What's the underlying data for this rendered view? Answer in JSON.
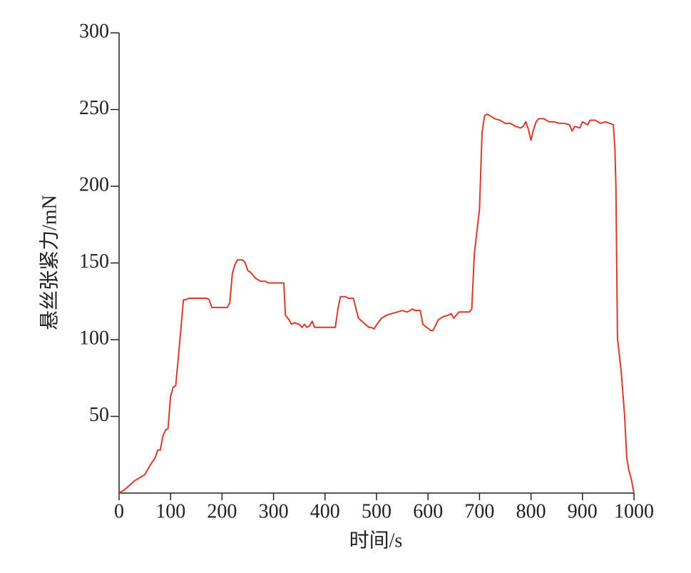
{
  "chart_data": {
    "type": "line",
    "xlabel": "时间/s",
    "ylabel": "悬丝张紧力/mN",
    "color": "#d93a2b",
    "x": [
      0,
      10,
      20,
      30,
      40,
      50,
      60,
      70,
      75,
      80,
      85,
      90,
      95,
      100,
      105,
      110,
      115,
      120,
      125,
      130,
      135,
      170,
      175,
      180,
      210,
      215,
      220,
      225,
      230,
      240,
      245,
      250,
      255,
      265,
      275,
      285,
      290,
      320,
      323,
      330,
      335,
      340,
      350,
      355,
      360,
      365,
      370,
      375,
      380,
      420,
      425,
      430,
      440,
      445,
      455,
      465,
      475,
      485,
      490,
      495,
      505,
      510,
      520,
      530,
      540,
      550,
      560,
      570,
      575,
      585,
      590,
      605,
      610,
      620,
      630,
      640,
      645,
      650,
      660,
      680,
      685,
      690,
      700,
      705,
      710,
      715,
      720,
      730,
      740,
      750,
      760,
      770,
      780,
      785,
      790,
      795,
      800,
      805,
      810,
      815,
      825,
      835,
      845,
      855,
      865,
      875,
      880,
      885,
      895,
      900,
      910,
      915,
      925,
      935,
      945,
      960,
      963,
      965,
      968,
      975,
      982,
      986,
      990,
      995,
      1000
    ],
    "values": [
      0,
      2,
      5,
      8,
      10,
      12,
      18,
      23,
      28,
      28,
      37,
      41,
      42,
      63,
      69,
      70,
      88,
      107,
      126,
      126,
      127,
      127,
      126,
      121,
      121,
      124,
      143,
      149,
      152,
      152,
      150,
      145,
      144,
      140,
      138,
      138,
      137,
      137,
      116,
      113,
      110,
      111,
      110,
      108,
      110,
      108,
      109,
      112,
      108,
      108,
      120,
      128,
      128,
      127,
      127,
      114,
      111,
      108,
      108,
      107,
      112,
      114,
      116,
      117,
      118,
      119,
      118,
      120,
      119,
      119,
      110,
      106,
      106,
      113,
      115,
      116,
      117,
      114,
      118,
      118,
      120,
      156,
      185,
      235,
      246,
      247,
      246,
      244,
      243,
      241,
      241,
      239,
      238,
      239,
      242,
      237,
      230,
      237,
      242,
      244,
      244,
      242,
      242,
      241,
      241,
      240,
      236,
      239,
      238,
      242,
      240,
      243,
      243,
      241,
      242,
      240,
      225,
      200,
      101,
      80,
      50,
      23,
      15,
      9,
      0
    ],
    "xlim": [
      0,
      1000
    ],
    "xticks": [
      0,
      100,
      200,
      300,
      400,
      500,
      600,
      700,
      800,
      900,
      1000
    ],
    "ylim": [
      0,
      300
    ],
    "yticks": [
      50,
      100,
      150,
      200,
      250,
      300
    ]
  }
}
